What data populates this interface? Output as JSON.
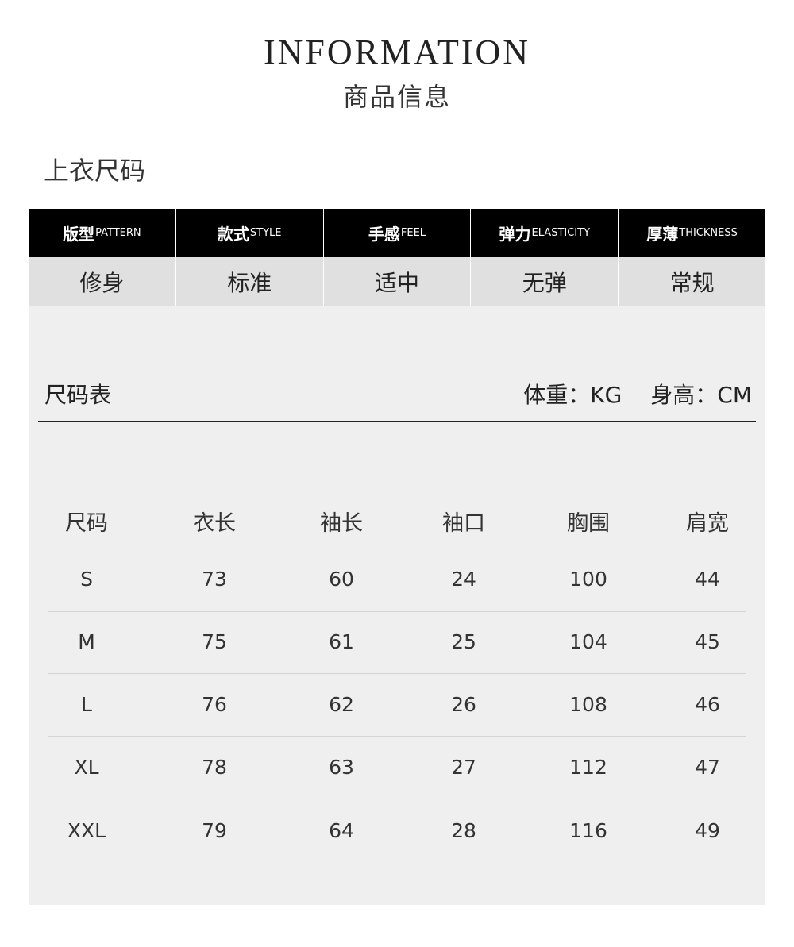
{
  "header": {
    "title_en": "INFORMATION",
    "title_cn": "商品信息"
  },
  "section_title": "上衣尺码",
  "attributes": [
    {
      "label_cn": "版型",
      "label_en": "PATTERN",
      "value": "修身"
    },
    {
      "label_cn": "款式",
      "label_en": "STYLE",
      "value": "标准"
    },
    {
      "label_cn": "手感",
      "label_en": "FEEL",
      "value": "适中"
    },
    {
      "label_cn": "弹力",
      "label_en": "ELASTICITY",
      "value": "无弹"
    },
    {
      "label_cn": "厚薄",
      "label_en": "THICKNESS",
      "value": "常规"
    }
  ],
  "size_chart": {
    "title": "尺码表",
    "unit_weight": "体重：KG",
    "unit_height": "身高：CM",
    "columns": [
      "尺码",
      "衣长",
      "袖长",
      "袖口",
      "胸围",
      "肩宽"
    ],
    "rows": [
      [
        "S",
        "73",
        "60",
        "24",
        "100",
        "44"
      ],
      [
        "M",
        "75",
        "61",
        "25",
        "104",
        "45"
      ],
      [
        "L",
        "76",
        "62",
        "26",
        "108",
        "46"
      ],
      [
        "XL",
        "78",
        "63",
        "27",
        "112",
        "47"
      ],
      [
        "XXL",
        "79",
        "64",
        "28",
        "116",
        "49"
      ]
    ]
  }
}
